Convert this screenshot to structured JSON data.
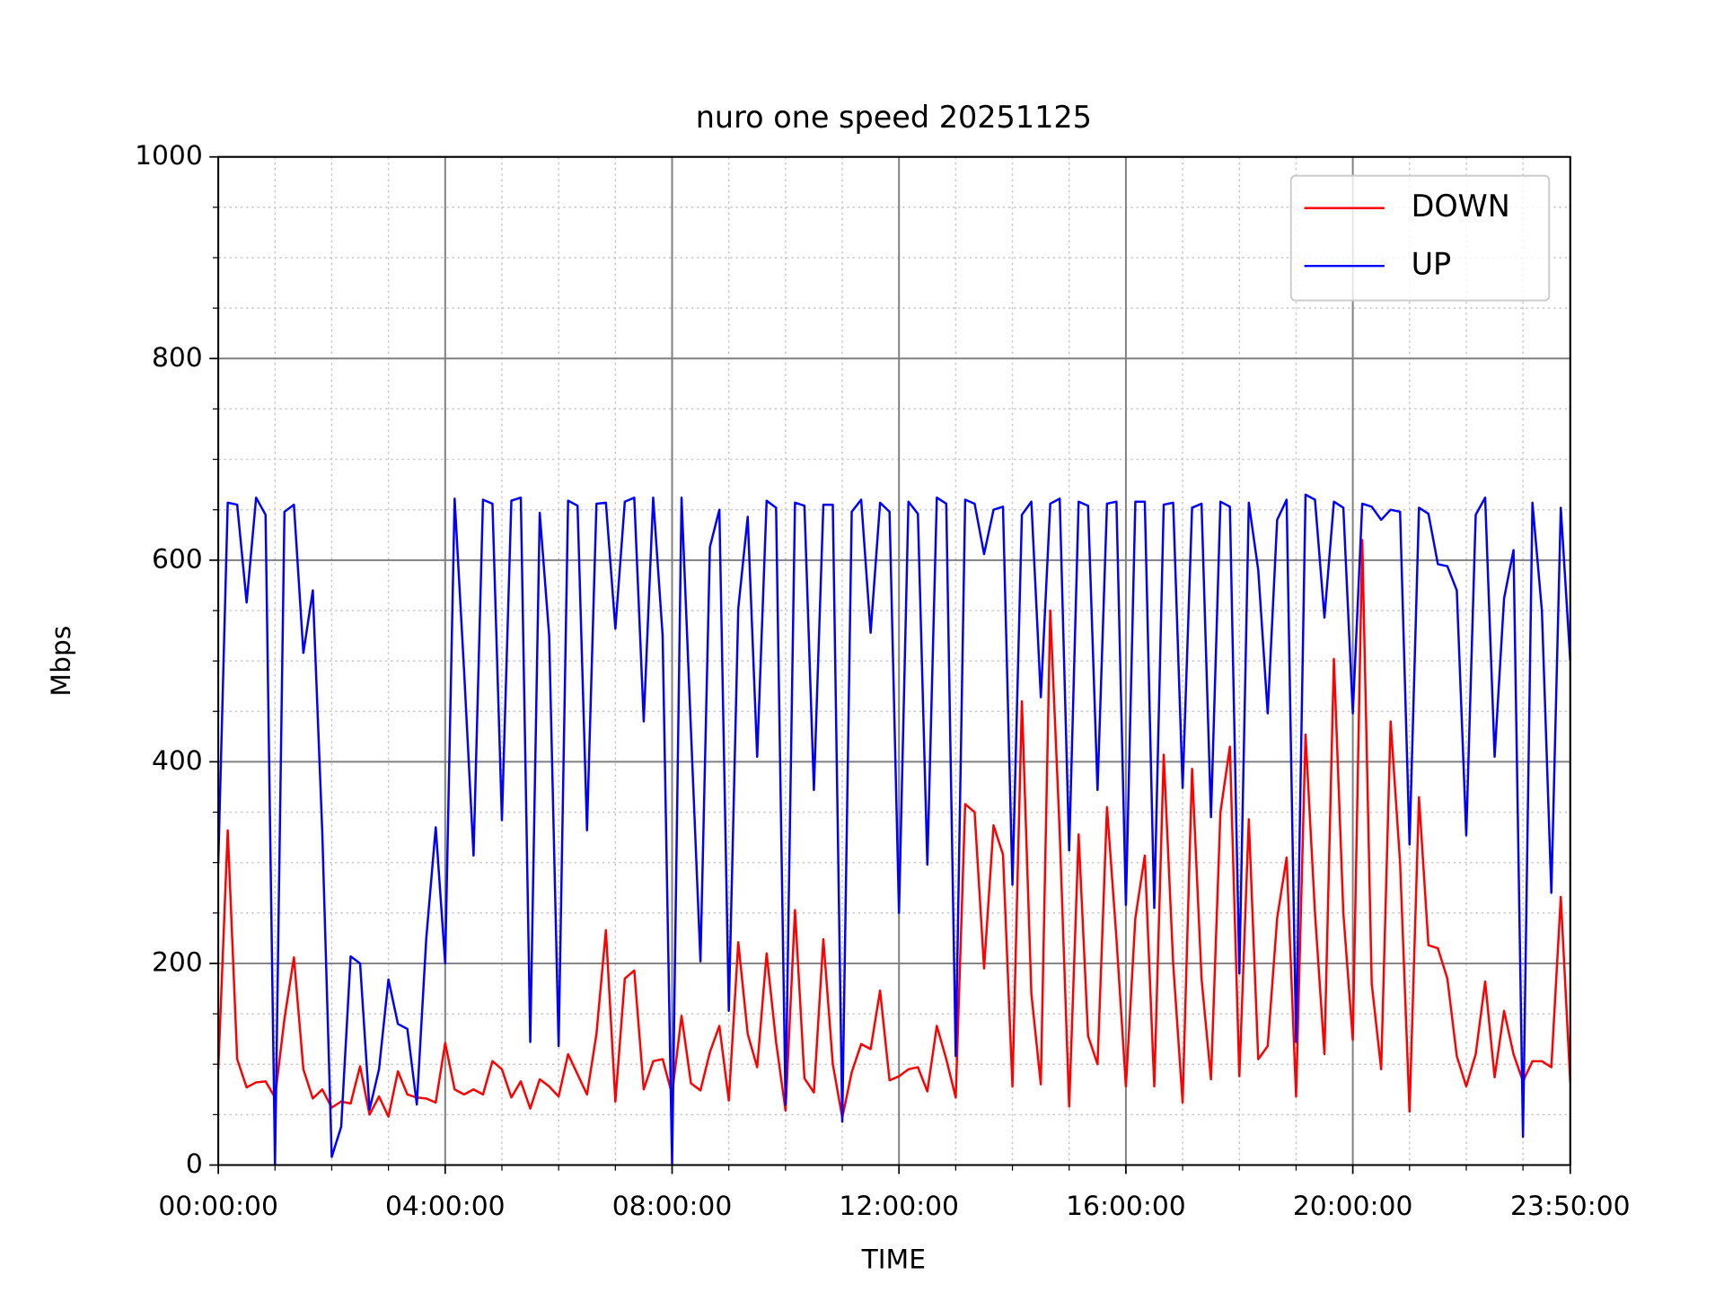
{
  "chart_data": {
    "type": "line",
    "title": "nuro one speed 20251125",
    "x_label": "TIME",
    "y_label": "Mbps",
    "x": [
      0,
      10,
      20,
      30,
      40,
      50,
      60,
      70,
      80,
      90,
      100,
      110,
      120,
      130,
      140,
      150,
      160,
      170,
      180,
      190,
      200,
      210,
      220,
      230,
      240,
      250,
      260,
      270,
      280,
      290,
      300,
      310,
      320,
      330,
      340,
      350,
      360,
      370,
      380,
      390,
      400,
      410,
      420,
      430,
      440,
      450,
      460,
      470,
      480,
      490,
      500,
      510,
      520,
      530,
      540,
      550,
      560,
      570,
      580,
      590,
      600,
      610,
      620,
      630,
      640,
      650,
      660,
      670,
      680,
      690,
      700,
      710,
      720,
      730,
      740,
      750,
      760,
      770,
      780,
      790,
      800,
      810,
      820,
      830,
      840,
      850,
      860,
      870,
      880,
      890,
      900,
      910,
      920,
      930,
      940,
      950,
      960,
      970,
      980,
      990,
      1000,
      1010,
      1020,
      1030,
      1040,
      1050,
      1060,
      1070,
      1080,
      1090,
      1100,
      1110,
      1120,
      1130,
      1140,
      1150,
      1160,
      1170,
      1180,
      1190,
      1200,
      1210,
      1220,
      1230,
      1240,
      1250,
      1260,
      1270,
      1280,
      1290,
      1300,
      1310,
      1320,
      1330,
      1340,
      1350,
      1360,
      1370,
      1380,
      1390,
      1400,
      1410,
      1420,
      1430
    ],
    "series": [
      {
        "name": "DOWN",
        "color": "#ff0000",
        "values": [
          95,
          332,
          105,
          77,
          82,
          83,
          67,
          145,
          206,
          95,
          66,
          75,
          57,
          63,
          61,
          98,
          50,
          68,
          48,
          93,
          70,
          67,
          66,
          62,
          121,
          75,
          70,
          75,
          70,
          103,
          95,
          67,
          83,
          56,
          85,
          78,
          68,
          110,
          90,
          70,
          130,
          233,
          63,
          185,
          193,
          75,
          103,
          105,
          70,
          148,
          81,
          74,
          112,
          138,
          64,
          221,
          130,
          97,
          210,
          122,
          54,
          253,
          86,
          72,
          224,
          100,
          47,
          92,
          120,
          115,
          173,
          84,
          88,
          95,
          97,
          73,
          138,
          105,
          67,
          358,
          350,
          195,
          337,
          308,
          78,
          460,
          170,
          80,
          550,
          330,
          58,
          328,
          128,
          100,
          355,
          225,
          78,
          245,
          307,
          78,
          407,
          200,
          62,
          393,
          185,
          85,
          350,
          415,
          88,
          343,
          105,
          118,
          245,
          305,
          68,
          427,
          250,
          110,
          502,
          250,
          124,
          620,
          180,
          95,
          440,
          300,
          53,
          365,
          218,
          215,
          185,
          108,
          78,
          110,
          182,
          87,
          153,
          110,
          83,
          103,
          103,
          97,
          266,
          82
        ]
      },
      {
        "name": "UP",
        "color": "#0000ff",
        "values": [
          300,
          657,
          655,
          558,
          662,
          645,
          0,
          648,
          655,
          508,
          570,
          330,
          8,
          38,
          207,
          200,
          55,
          95,
          184,
          140,
          135,
          60,
          225,
          335,
          200,
          661,
          490,
          307,
          660,
          656,
          342,
          659,
          662,
          122,
          647,
          525,
          118,
          659,
          654,
          332,
          656,
          657,
          532,
          658,
          662,
          440,
          662,
          525,
          0,
          662,
          430,
          202,
          613,
          650,
          153,
          552,
          643,
          405,
          659,
          652,
          60,
          657,
          654,
          372,
          655,
          655,
          43,
          648,
          660,
          528,
          657,
          648,
          250,
          658,
          646,
          298,
          662,
          656,
          108,
          660,
          656,
          606,
          650,
          653,
          278,
          645,
          658,
          464,
          656,
          661,
          312,
          658,
          654,
          372,
          656,
          658,
          258,
          658,
          658,
          255,
          655,
          657,
          374,
          652,
          656,
          345,
          658,
          653,
          190,
          657,
          590,
          448,
          640,
          660,
          122,
          665,
          660,
          543,
          658,
          652,
          448,
          656,
          653,
          640,
          650,
          648,
          318,
          652,
          646,
          596,
          594,
          570,
          327,
          645,
          662,
          405,
          562,
          610,
          28,
          657,
          550,
          270,
          652,
          500
        ]
      }
    ],
    "xlim": [
      0,
      1430
    ],
    "xticks": [
      {
        "value": 0,
        "label": "00:00:00"
      },
      {
        "value": 240,
        "label": "04:00:00"
      },
      {
        "value": 480,
        "label": "08:00:00"
      },
      {
        "value": 720,
        "label": "12:00:00"
      },
      {
        "value": 960,
        "label": "16:00:00"
      },
      {
        "value": 1200,
        "label": "20:00:00"
      },
      {
        "value": 1430,
        "label": "23:50:00"
      }
    ],
    "ylim": [
      0,
      1000
    ],
    "yticks": [
      0,
      200,
      400,
      600,
      800,
      1000
    ],
    "grid": true,
    "legend": "upper right"
  }
}
